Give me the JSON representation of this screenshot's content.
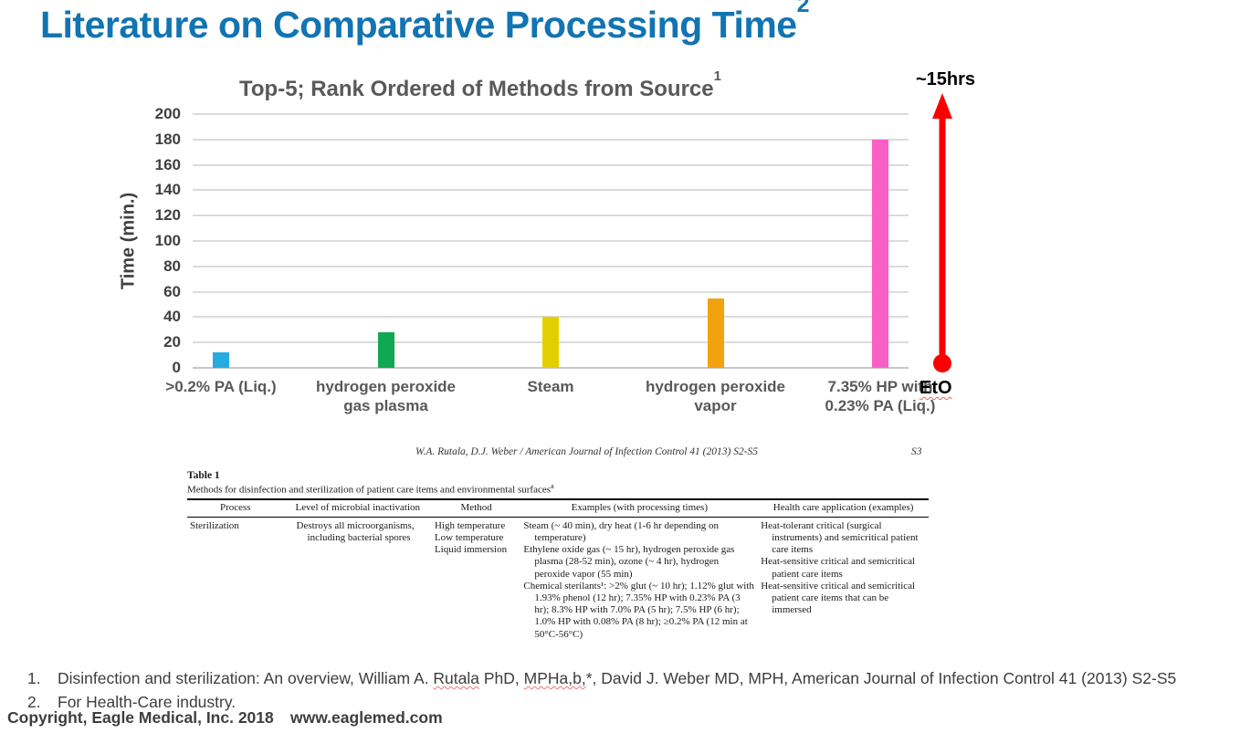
{
  "slide_title": {
    "text": "Literature on Comparative Processing Time",
    "superscript": "2",
    "color": "#1274B2"
  },
  "chart_data": {
    "type": "bar",
    "title": "Top-5; Rank Ordered of Methods from Source",
    "title_superscript": "1",
    "categories": [
      ">0.2% PA (Liq.)",
      "hydrogen peroxide gas plasma",
      "Steam",
      "hydrogen peroxide vapor",
      "7.35% HP with 0.23% PA (Liq.)"
    ],
    "values": [
      12,
      28,
      40,
      55,
      180
    ],
    "bar_colors": [
      "#27AAE1",
      "#10A852",
      "#E3CF00",
      "#F2A20E",
      "#F95FC5"
    ],
    "xlabel": "",
    "ylabel": "Time (min.)",
    "ylim": [
      0,
      200
    ],
    "ytick_step": 20,
    "grid": true,
    "legend": false,
    "annotations": [
      "~15hrs",
      "EtO"
    ]
  },
  "eto_annotation": {
    "top_label": "~15hrs",
    "bottom_label": "EtO",
    "arrow_color": "#FA0000"
  },
  "paper": {
    "running_head": "W.A. Rutala, D.J. Weber / American Journal of Infection Control 41 (2013) S2-S5",
    "page_number": "S3",
    "table": {
      "label": "Table 1",
      "caption": "Methods for disinfection and sterilization of patient care items and environmental surfaces",
      "caption_superscript": "a",
      "columns": [
        "Process",
        "Level of microbial inactivation",
        "Method",
        "Examples (with processing times)",
        "Health care application (examples)"
      ],
      "row": {
        "process": "Sterilization",
        "level": "Destroys all microorganisms, including bacterial spores",
        "method": [
          "High temperature",
          "Low temperature",
          "Liquid immersion"
        ],
        "examples": [
          "Steam (~ 40 min), dry heat (1-6 hr depending on temperature)",
          "Ethylene oxide gas (~ 15 hr), hydrogen peroxide gas plasma (28-52 min), ozone (~ 4 hr), hydrogen peroxide vapor (55 min)",
          "Chemical sterilants¹: >2% glut (~ 10 hr); 1.12% glut with 1.93% phenol (12 hr); 7.35% HP with 0.23% PA (3 hr); 8.3% HP with 7.0% PA (5 hr); 7.5% HP (6 hr); 1.0% HP with 0.08% PA (8 hr); ≥0.2% PA (12 min at 50°C-56°C)"
        ],
        "applications": [
          "Heat-tolerant critical (surgical instruments) and semicritical patient care items",
          "Heat-sensitive critical and semicritical patient care items",
          "Heat-sensitive critical and semicritical patient care items that can be immersed"
        ]
      }
    }
  },
  "footnotes": {
    "item1_number": "1.",
    "item1_parts": [
      "Disinfection and sterilization: An overview, William A. ",
      "Rutala",
      " PhD, ",
      "MPHa,b,",
      "*, David J. Weber MD, MPH, American Journal of Infection Control 41 (2013) S2-S5"
    ],
    "item2_number": "2.",
    "item2_text": "For Health-Care industry."
  },
  "footer": {
    "copyright": "Copyright, Eagle Medical, Inc. 2018",
    "website": "www.eaglemed.com"
  }
}
